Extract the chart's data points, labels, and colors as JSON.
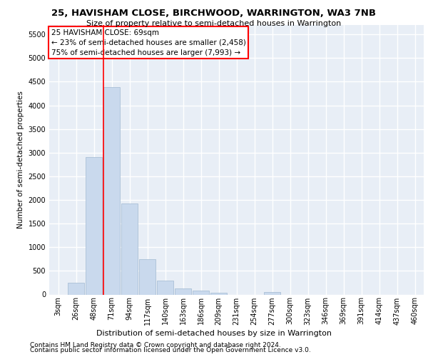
{
  "title1": "25, HAVISHAM CLOSE, BIRCHWOOD, WARRINGTON, WA3 7NB",
  "title2": "Size of property relative to semi-detached houses in Warrington",
  "xlabel": "Distribution of semi-detached houses by size in Warrington",
  "ylabel": "Number of semi-detached properties",
  "bar_color": "#c9d9ed",
  "bar_edge_color": "#a0b8d0",
  "bar_categories": [
    "3sqm",
    "26sqm",
    "48sqm",
    "71sqm",
    "94sqm",
    "117sqm",
    "140sqm",
    "163sqm",
    "186sqm",
    "209sqm",
    "231sqm",
    "254sqm",
    "277sqm",
    "300sqm",
    "323sqm",
    "346sqm",
    "369sqm",
    "391sqm",
    "414sqm",
    "437sqm",
    "460sqm"
  ],
  "bar_values": [
    0,
    250,
    2900,
    4380,
    1930,
    740,
    300,
    130,
    80,
    40,
    0,
    0,
    50,
    0,
    0,
    0,
    0,
    0,
    0,
    0,
    0
  ],
  "ylim": [
    0,
    5700
  ],
  "yticks": [
    0,
    500,
    1000,
    1500,
    2000,
    2500,
    3000,
    3500,
    4000,
    4500,
    5000,
    5500
  ],
  "vline_x": 2.52,
  "annotation_box_text": "25 HAVISHAM CLOSE: 69sqm\n← 23% of semi-detached houses are smaller (2,458)\n75% of semi-detached houses are larger (7,993) →",
  "footer1": "Contains HM Land Registry data © Crown copyright and database right 2024.",
  "footer2": "Contains public sector information licensed under the Open Government Licence v3.0.",
  "background_color": "#e8eef6",
  "grid_color": "#ffffff",
  "title1_fontsize": 9.5,
  "title2_fontsize": 8.0,
  "footer_fontsize": 6.5,
  "ylabel_fontsize": 7.5,
  "xlabel_fontsize": 8.0,
  "tick_fontsize": 7.0,
  "ann_fontsize": 7.5
}
